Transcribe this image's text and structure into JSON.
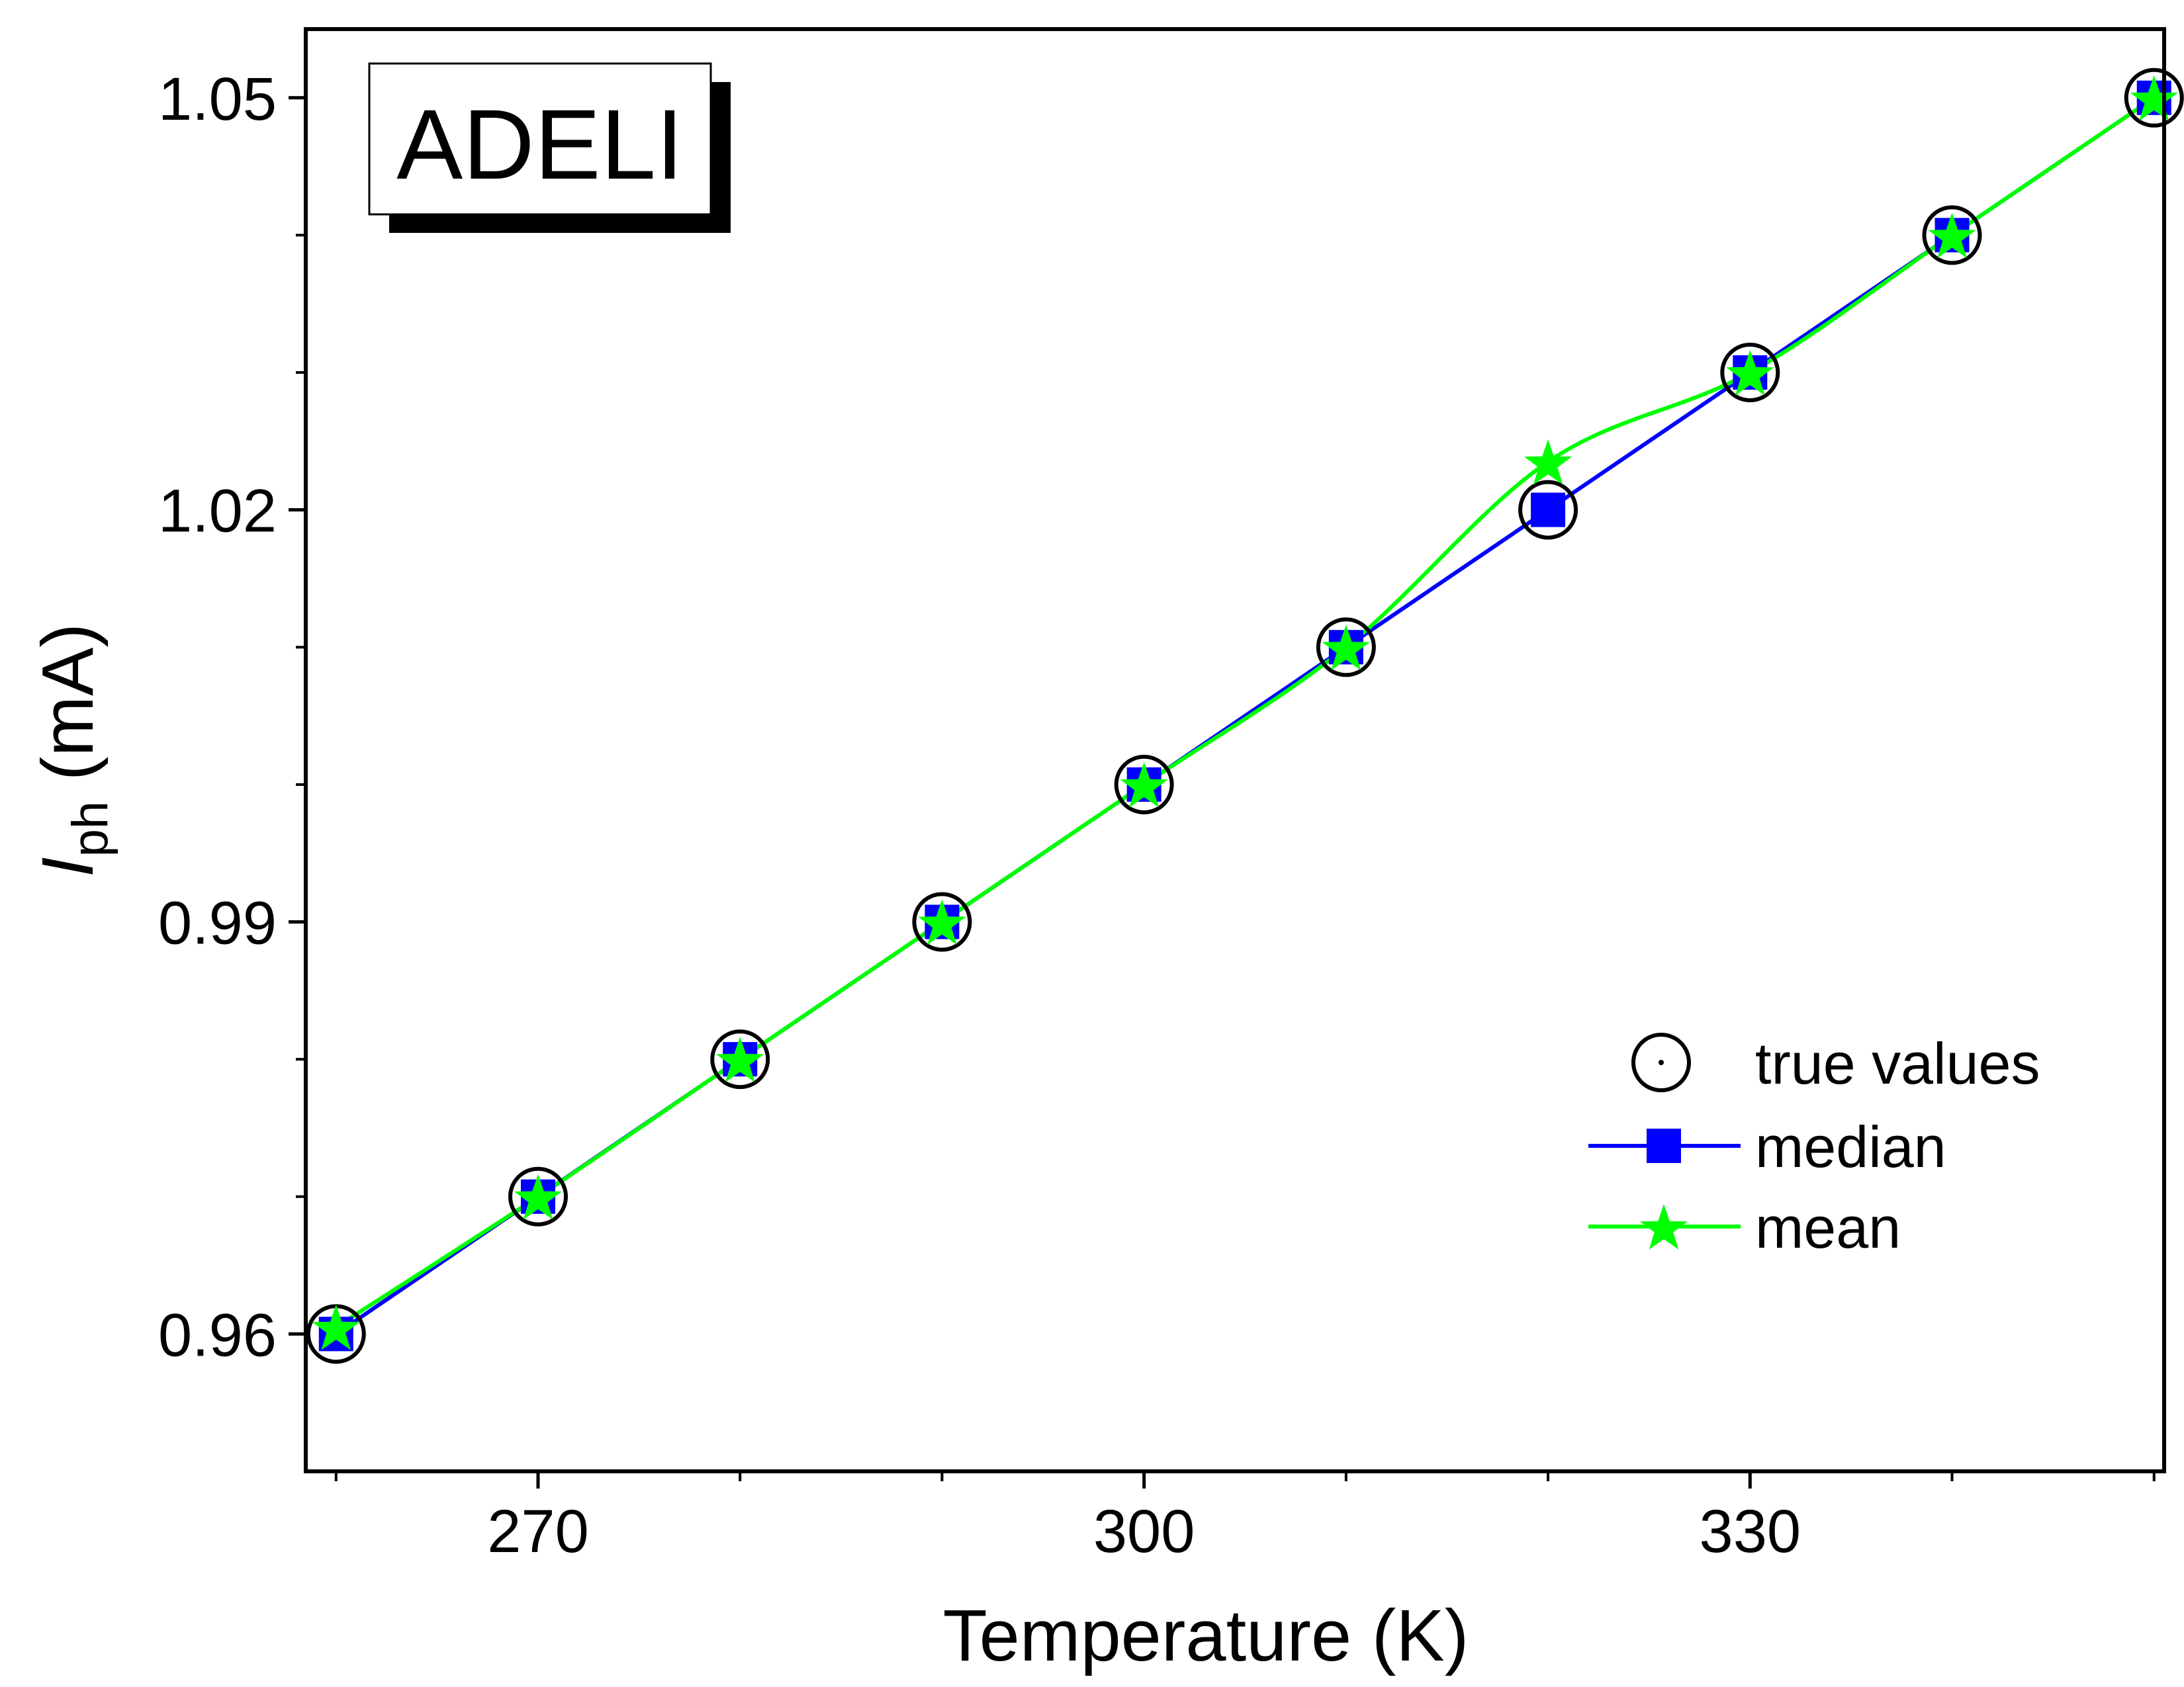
{
  "chart_data": {
    "type": "line",
    "badge": "ADELI",
    "xlabel": "Temperature (K)",
    "ylabel": {
      "main": "I",
      "sub": "ph",
      "unit": " (mA)"
    },
    "xlim": [
      258.5,
      350.5
    ],
    "ylim": [
      0.95,
      1.055
    ],
    "xticks": [
      270,
      300,
      330
    ],
    "xtick_labels": [
      "270",
      "300",
      "330"
    ],
    "xminor_ticks": [
      260,
      280,
      290,
      310,
      320,
      340,
      350
    ],
    "yticks": [
      0.96,
      0.99,
      1.02,
      1.05
    ],
    "ytick_labels": [
      "0.96",
      "0.99",
      "1.02",
      "1.05"
    ],
    "yminor_ticks": [
      0.97,
      0.98,
      1.0,
      1.01,
      1.03,
      1.04
    ],
    "x": [
      260,
      270,
      280,
      290,
      300,
      310,
      320,
      330,
      340,
      350
    ],
    "series": [
      {
        "name": "true values",
        "marker": "circle-dot",
        "line": false,
        "color": "#000000",
        "values": [
          0.96,
          0.97,
          0.98,
          0.99,
          1.0,
          1.01,
          1.02,
          1.03,
          1.04,
          1.05
        ]
      },
      {
        "name": "median",
        "marker": "square",
        "line": true,
        "color": "#0000ff",
        "values": [
          0.96,
          0.97,
          0.98,
          0.99,
          1.0,
          1.01,
          1.02,
          1.03,
          1.04,
          1.05
        ]
      },
      {
        "name": "mean",
        "marker": "star",
        "line": true,
        "color": "#00ff00",
        "values": [
          0.9605,
          0.97,
          0.98,
          0.99,
          1.0,
          1.01,
          1.0235,
          1.03,
          1.04,
          1.05
        ]
      }
    ],
    "legend_position": "bottom-right",
    "grid": false
  }
}
